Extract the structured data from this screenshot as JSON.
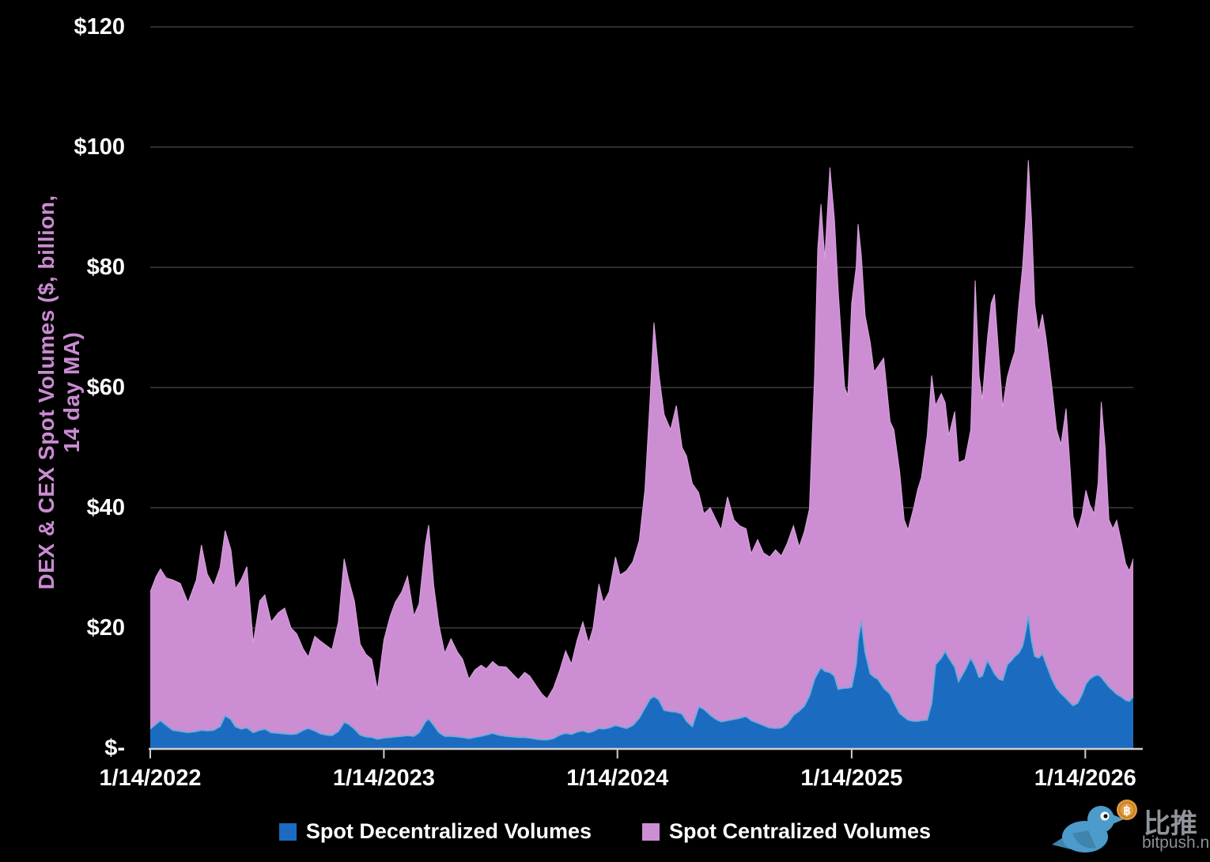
{
  "colors": {
    "background": "#000000",
    "dex_fill": "#1b6cc0",
    "dex_edge": "#70aadd",
    "cex_fill": "#cd8dd3",
    "cex_edge": "#d9a4de",
    "gridline": "#3d3d3d",
    "axis_line": "#cfcfcf",
    "tick_label": "#ffffff",
    "axis_title": "#cb8bd3",
    "watermark_bird": "#4d9bca",
    "watermark_coin": "#e09b3d",
    "watermark_text": "#90959c"
  },
  "y_axis": {
    "title": "DEX & CEX Spot Volumes ($, billion, 14 day MA)",
    "ticks": [
      {
        "label": "$120",
        "value": 120
      },
      {
        "label": "$100",
        "value": 100
      },
      {
        "label": "$80",
        "value": 80
      },
      {
        "label": "$60",
        "value": 60
      },
      {
        "label": "$40",
        "value": 40
      },
      {
        "label": "$20",
        "value": 20
      },
      {
        "label": "$-",
        "value": 0
      }
    ]
  },
  "x_axis": {
    "domain_days": [
      0,
      1536
    ],
    "ticks": [
      {
        "label": "1/14/2022",
        "day": 0
      },
      {
        "label": "1/14/2023",
        "day": 365
      },
      {
        "label": "1/14/2024",
        "day": 730
      },
      {
        "label": "1/14/2025",
        "day": 1096
      },
      {
        "label": "1/14/2026",
        "day": 1461
      }
    ]
  },
  "watermark": {
    "cjk": "比推",
    "domain": "bitpush.news",
    "coin_symbol": "฿"
  },
  "chart_data": {
    "type": "area",
    "stacked": true,
    "title": "",
    "xlabel": "",
    "ylabel": "DEX & CEX Spot Volumes ($, billion, 14 day MA)",
    "ylim": [
      0,
      120
    ],
    "grid": "horizontal",
    "legend_position": "bottom",
    "x_unit": "days since 2022-01-14",
    "point_format": [
      "day",
      "spot_decentralized",
      "spot_centralized"
    ],
    "series": [
      {
        "name": "Spot Decentralized Volumes",
        "color": "#1b6cc0",
        "point_index": 1
      },
      {
        "name": "Spot Centralized Volumes",
        "color": "#cd8dd3",
        "point_index": 2
      }
    ],
    "points": [
      [
        0,
        3.2,
        22.8
      ],
      [
        9,
        4,
        24.5
      ],
      [
        16,
        4.6,
        25.2
      ],
      [
        25,
        3.8,
        24.5
      ],
      [
        35,
        3,
        25
      ],
      [
        47,
        2.8,
        24.6
      ],
      [
        59,
        2.6,
        21.6
      ],
      [
        72,
        2.8,
        25.2
      ],
      [
        80,
        3,
        30.8
      ],
      [
        89,
        2.9,
        26.1
      ],
      [
        99,
        3,
        24
      ],
      [
        109,
        3.6,
        26.4
      ],
      [
        117,
        5.4,
        30.8
      ],
      [
        126,
        4.8,
        28.2
      ],
      [
        133,
        3.6,
        22.9
      ],
      [
        142,
        3.2,
        24.8
      ],
      [
        151,
        3.4,
        26.8
      ],
      [
        161,
        2.6,
        14.9
      ],
      [
        171,
        3,
        21.5
      ],
      [
        179,
        3.2,
        22.3
      ],
      [
        189,
        2.6,
        18.4
      ],
      [
        200,
        2.5,
        20
      ],
      [
        210,
        2.4,
        20.9
      ],
      [
        220,
        2.3,
        17.7
      ],
      [
        229,
        2.4,
        16.6
      ],
      [
        239,
        3,
        13.5
      ],
      [
        247,
        3.3,
        11.9
      ],
      [
        257,
        2.9,
        15.7
      ],
      [
        266,
        2.4,
        15.4
      ],
      [
        276,
        2.2,
        14.8
      ],
      [
        284,
        2.1,
        14.3
      ],
      [
        294,
        2.8,
        18.2
      ],
      [
        303,
        4.3,
        27.2
      ],
      [
        310,
        4,
        24
      ],
      [
        319,
        3.2,
        21.3
      ],
      [
        328,
        2.2,
        15.1
      ],
      [
        337,
        1.9,
        13.7
      ],
      [
        346,
        1.8,
        13
      ],
      [
        355,
        1.5,
        8.2
      ],
      [
        365,
        1.7,
        16.3
      ],
      [
        375,
        1.8,
        20.2
      ],
      [
        383,
        1.9,
        22.4
      ],
      [
        393,
        2,
        24
      ],
      [
        402,
        2.1,
        26.5
      ],
      [
        412,
        2,
        20
      ],
      [
        420,
        2.6,
        21.4
      ],
      [
        430,
        4.4,
        29.6
      ],
      [
        435,
        4.9,
        32.2
      ],
      [
        443,
        3.8,
        23.2
      ],
      [
        451,
        2.6,
        17.9
      ],
      [
        460,
        2,
        13.8
      ],
      [
        470,
        2,
        16.2
      ],
      [
        480,
        1.9,
        14.1
      ],
      [
        488,
        1.8,
        13
      ],
      [
        498,
        1.6,
        9.9
      ],
      [
        507,
        1.8,
        11.2
      ],
      [
        517,
        2,
        11.8
      ],
      [
        525,
        2.2,
        11
      ],
      [
        535,
        2.5,
        11.9
      ],
      [
        544,
        2.2,
        11.4
      ],
      [
        556,
        2,
        11.5
      ],
      [
        566,
        1.9,
        10.5
      ],
      [
        575,
        1.8,
        9.6
      ],
      [
        585,
        1.8,
        10.8
      ],
      [
        593,
        1.7,
        10.3
      ],
      [
        603,
        1.5,
        8.9
      ],
      [
        612,
        1.4,
        7.6
      ],
      [
        620,
        1.4,
        6.8
      ],
      [
        630,
        1.6,
        8.4
      ],
      [
        640,
        2.2,
        10.8
      ],
      [
        649,
        2.5,
        13.7
      ],
      [
        658,
        2.3,
        11.7
      ],
      [
        667,
        2.7,
        15.3
      ],
      [
        676,
        2.9,
        18.1
      ],
      [
        685,
        2.6,
        14.9
      ],
      [
        692,
        2.8,
        17.2
      ],
      [
        701,
        3.3,
        24
      ],
      [
        708,
        3.2,
        21
      ],
      [
        717,
        3.4,
        22.6
      ],
      [
        727,
        3.8,
        28
      ],
      [
        734,
        3.6,
        25.2
      ],
      [
        744,
        3.3,
        26.2
      ],
      [
        754,
        3.8,
        27.2
      ],
      [
        764,
        5,
        29.5
      ],
      [
        773,
        6.7,
        36.3
      ],
      [
        781,
        8.2,
        49.8
      ],
      [
        787,
        8.6,
        62.2
      ],
      [
        795,
        8,
        54
      ],
      [
        803,
        6.3,
        49.2
      ],
      [
        813,
        6.1,
        46.9
      ],
      [
        822,
        6,
        51
      ],
      [
        831,
        5.7,
        44.3
      ],
      [
        838,
        4.5,
        44.1
      ],
      [
        847,
        3.6,
        40.4
      ],
      [
        857,
        6.9,
        35.6
      ],
      [
        865,
        6.5,
        32.5
      ],
      [
        875,
        5.5,
        34.5
      ],
      [
        884,
        4.8,
        33.2
      ],
      [
        892,
        4.4,
        31.9
      ],
      [
        902,
        4.6,
        37.2
      ],
      [
        912,
        4.8,
        33.2
      ],
      [
        921,
        5,
        32
      ],
      [
        931,
        5.3,
        31.2
      ],
      [
        939,
        4.6,
        27.8
      ],
      [
        949,
        4.2,
        30.5
      ],
      [
        958,
        3.8,
        28.7
      ],
      [
        968,
        3.4,
        28.4
      ],
      [
        977,
        3.3,
        29.7
      ],
      [
        986,
        3.4,
        28.6
      ],
      [
        995,
        4,
        30
      ],
      [
        1005,
        5.5,
        31.5
      ],
      [
        1014,
        6.2,
        27.3
      ],
      [
        1022,
        7,
        29
      ],
      [
        1030,
        8.7,
        31.1
      ],
      [
        1038,
        11.5,
        50.5
      ],
      [
        1043,
        12.5,
        70.5
      ],
      [
        1048,
        13.4,
        77.1
      ],
      [
        1054,
        12.8,
        68.7
      ],
      [
        1062,
        12.6,
        84
      ],
      [
        1069,
        12,
        76
      ],
      [
        1075,
        9.8,
        66.2
      ],
      [
        1085,
        10,
        50
      ],
      [
        1090,
        10,
        48.7
      ],
      [
        1096,
        10.2,
        63.8
      ],
      [
        1103,
        14,
        66
      ],
      [
        1106,
        18,
        69.2
      ],
      [
        1111,
        21.2,
        60.8
      ],
      [
        1117,
        16,
        56
      ],
      [
        1125,
        12.4,
        55.1
      ],
      [
        1131,
        11.8,
        50.8
      ],
      [
        1137,
        11.5,
        52
      ],
      [
        1146,
        10,
        54.9
      ],
      [
        1156,
        9,
        45.3
      ],
      [
        1162,
        7.6,
        45.4
      ],
      [
        1171,
        5.8,
        40.2
      ],
      [
        1178,
        5.2,
        32.8
      ],
      [
        1184,
        4.7,
        31.6
      ],
      [
        1193,
        4.5,
        35.5
      ],
      [
        1199,
        4.5,
        38.5
      ],
      [
        1205,
        4.6,
        40.4
      ],
      [
        1214,
        4.7,
        47.3
      ],
      [
        1221,
        7.5,
        54.5
      ],
      [
        1227,
        13.9,
        43.1
      ],
      [
        1236,
        15,
        44
      ],
      [
        1242,
        16.1,
        41.4
      ],
      [
        1248,
        15,
        37
      ],
      [
        1257,
        13.5,
        42.5
      ],
      [
        1263,
        11.1,
        36.4
      ],
      [
        1273,
        13,
        35
      ],
      [
        1282,
        15,
        38
      ],
      [
        1289,
        13.6,
        64.2
      ],
      [
        1295,
        11.8,
        50.2
      ],
      [
        1300,
        12,
        46
      ],
      [
        1308,
        14.6,
        53.4
      ],
      [
        1314,
        13.5,
        60.5
      ],
      [
        1319,
        12.4,
        63.1
      ],
      [
        1326,
        11.5,
        53.5
      ],
      [
        1332,
        11.3,
        45.4
      ],
      [
        1339,
        13.9,
        47.8
      ],
      [
        1345,
        14.5,
        49.5
      ],
      [
        1351,
        15.3,
        50.7
      ],
      [
        1357,
        15.8,
        57.8
      ],
      [
        1363,
        17,
        63
      ],
      [
        1368,
        19.5,
        68.5
      ],
      [
        1372,
        22.1,
        75.7
      ],
      [
        1377,
        18,
        70
      ],
      [
        1382,
        15.3,
        58.5
      ],
      [
        1388,
        15,
        54.2
      ],
      [
        1394,
        15.7,
        56.5
      ],
      [
        1400,
        14,
        54
      ],
      [
        1409,
        11.5,
        48.5
      ],
      [
        1416,
        10,
        43
      ],
      [
        1423,
        9.1,
        41.4
      ],
      [
        1431,
        8.3,
        48.2
      ],
      [
        1437,
        7.6,
        39.4
      ],
      [
        1442,
        7.1,
        31.4
      ],
      [
        1449,
        7.5,
        28.8
      ],
      [
        1456,
        9,
        30
      ],
      [
        1462,
        10.7,
        32.2
      ],
      [
        1468,
        11.5,
        29
      ],
      [
        1475,
        12,
        27
      ],
      [
        1481,
        12.2,
        31.8
      ],
      [
        1486,
        11.8,
        45.8
      ],
      [
        1492,
        11,
        39
      ],
      [
        1498,
        10.2,
        27.8
      ],
      [
        1504,
        9.6,
        26.9
      ],
      [
        1510,
        9,
        28.9
      ],
      [
        1518,
        8.5,
        25.5
      ],
      [
        1524,
        8,
        22.7
      ],
      [
        1530,
        7.8,
        21.7
      ],
      [
        1536,
        8.6,
        22.9
      ]
    ]
  }
}
